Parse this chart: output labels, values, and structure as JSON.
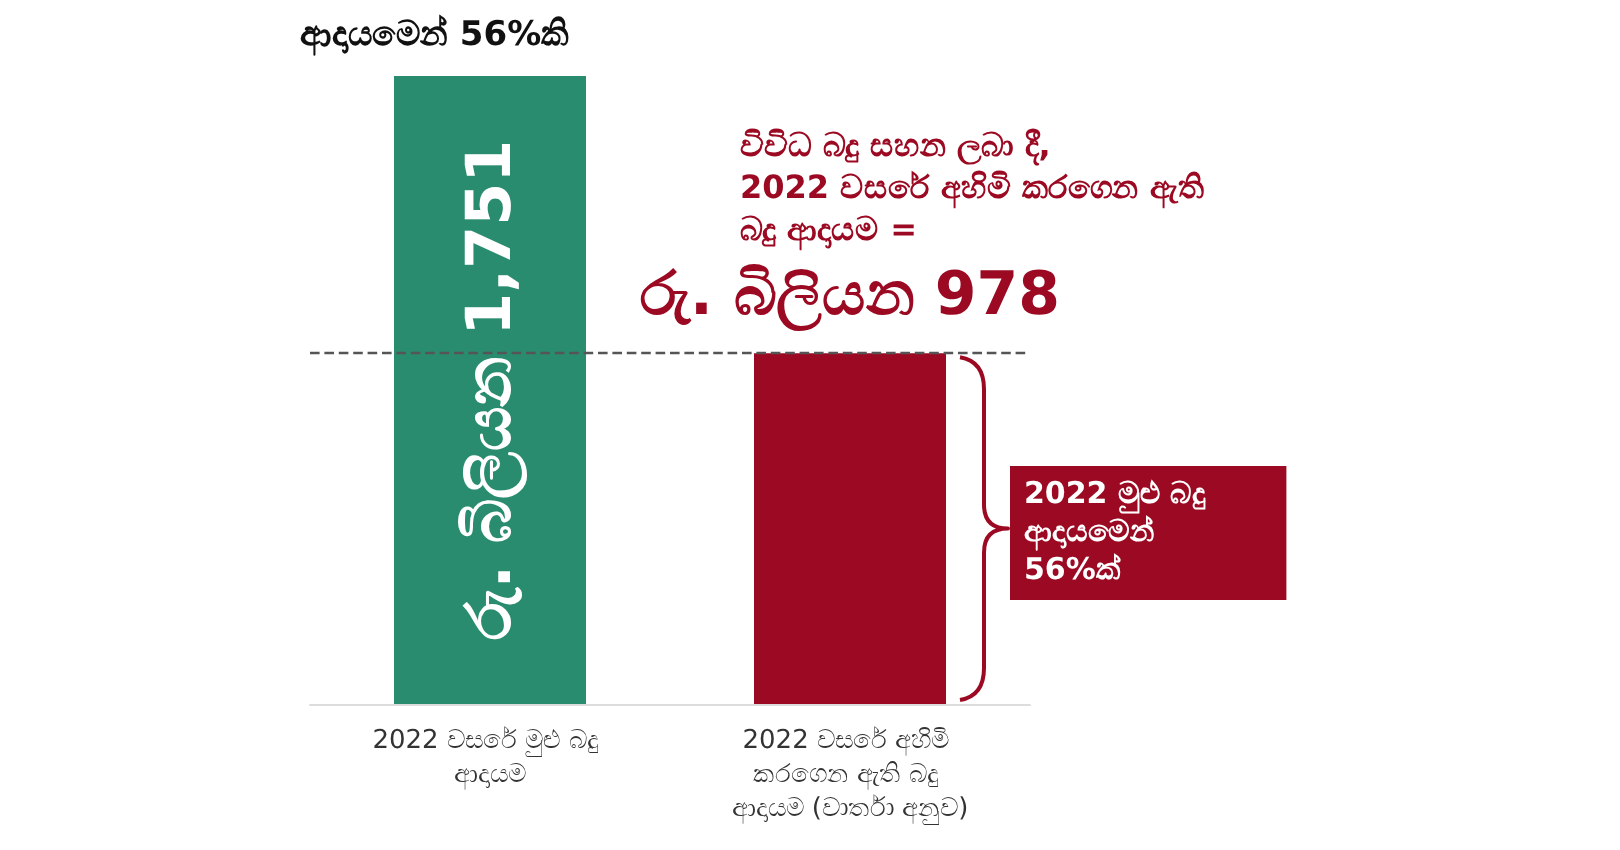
{
  "chart_data": {
    "type": "bar",
    "title": "ආදායමෙන් 56%කි",
    "categories": [
      "2022 වසරේ මුළු බදු ආදායම",
      "2022 වසරේ අහිමි කරගෙන ඇති බදු ආදායම (වාර්තා අනුව)"
    ],
    "values": [
      1751,
      978
    ],
    "colors": [
      "#2a8c6e",
      "#9b0a22"
    ],
    "value_labels": [
      "රු. බිලියන 1,751",
      "රු. බිලියන 978"
    ],
    "ref_lines": [
      {
        "axis": "y",
        "value": 978,
        "color": "#555555",
        "line_style": "dashed"
      }
    ],
    "annotations": [
      "විවිධ බදු සහන ලබා දී,\n2022 වසරේ අහිමි කරගෙන ඇති\nබදු ආදායම =",
      "2022 මුළු බදු\nආදායමෙන්\n56%ක්"
    ],
    "grid": false
  }
}
